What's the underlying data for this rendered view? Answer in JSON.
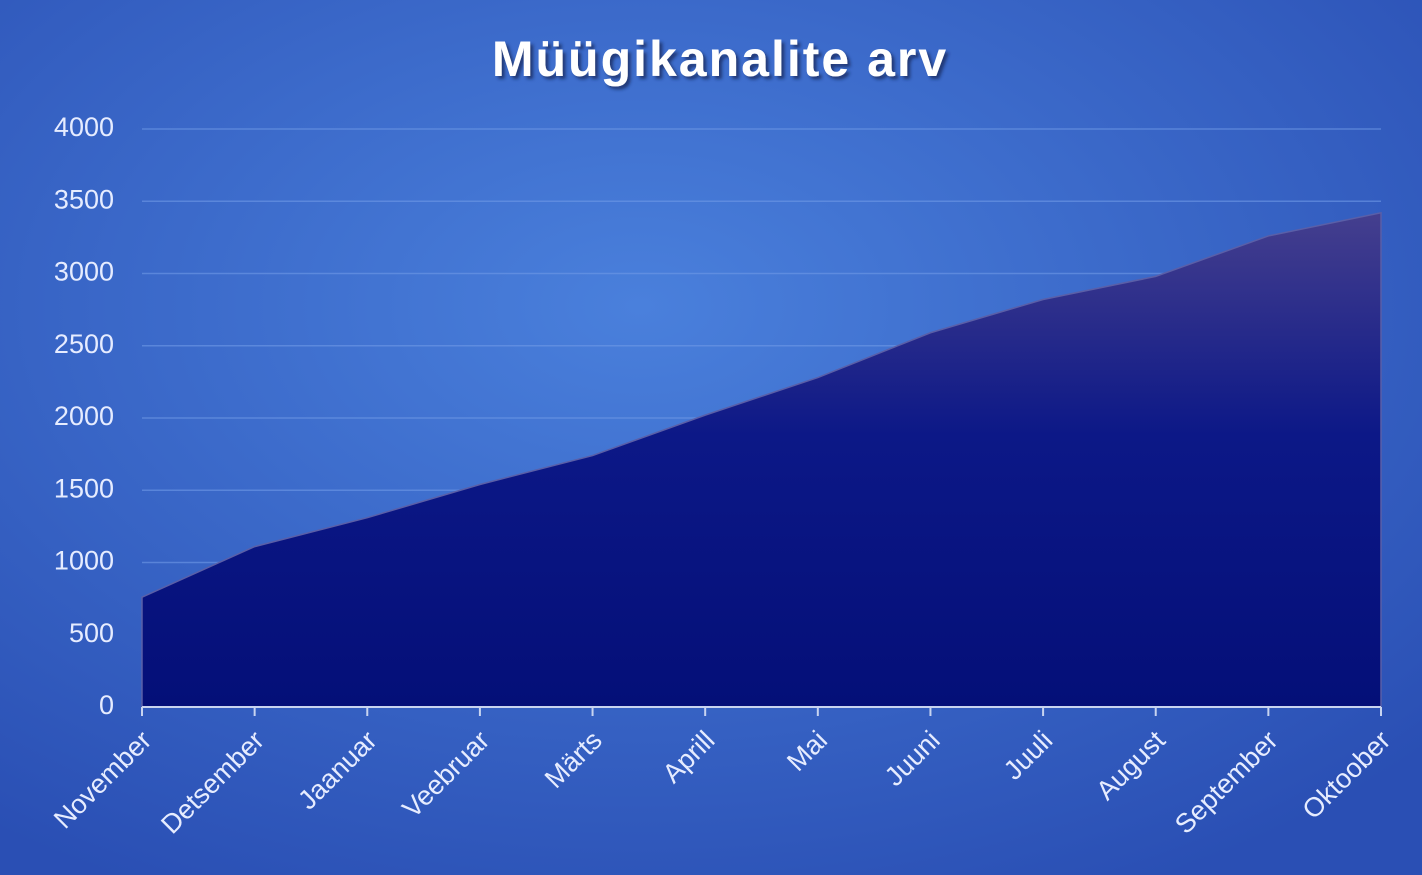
{
  "chart_data": {
    "type": "area",
    "title": "Müügikanalite arv",
    "categories": [
      "November",
      "Detsember",
      "Jaanuar",
      "Veebruar",
      "Märts",
      "Aprill",
      "Mai",
      "Juuni",
      "Juuli",
      "August",
      "September",
      "Oktoober"
    ],
    "values": [
      760,
      1110,
      1310,
      1540,
      1740,
      2020,
      2280,
      2590,
      2820,
      2980,
      3260,
      3420
    ],
    "color": "#0a1580",
    "ylim": [
      0,
      4000
    ],
    "yticks": [
      0,
      500,
      1000,
      1500,
      2000,
      2500,
      3000,
      3500,
      4000
    ],
    "grid": true
  }
}
